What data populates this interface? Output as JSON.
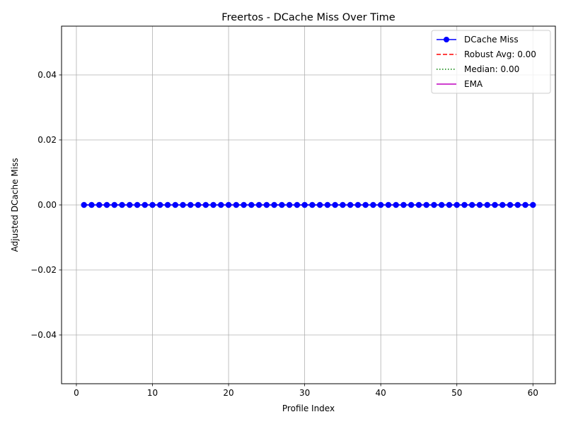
{
  "chart_data": {
    "type": "line",
    "title": "Freertos - DCache Miss Over Time",
    "xlabel": "Profile Index",
    "ylabel": "Adjusted DCache Miss",
    "xlim": [
      -1.95,
      62.95
    ],
    "ylim": [
      -0.055,
      0.055
    ],
    "xticks": [
      0,
      10,
      20,
      30,
      40,
      50,
      60
    ],
    "xtick_labels": [
      "0",
      "10",
      "20",
      "30",
      "40",
      "50",
      "60"
    ],
    "yticks": [
      -0.04,
      -0.02,
      0.0,
      0.02,
      0.04
    ],
    "ytick_labels": [
      "−0.04",
      "−0.02",
      "0.00",
      "0.02",
      "0.04"
    ],
    "grid": true,
    "legend_position": "top-right",
    "series": [
      {
        "name": "DCache Miss",
        "color": "#0000ff",
        "style": "solid-with-circle-markers",
        "x": [
          1,
          2,
          3,
          4,
          5,
          6,
          7,
          8,
          9,
          10,
          11,
          12,
          13,
          14,
          15,
          16,
          17,
          18,
          19,
          20,
          21,
          22,
          23,
          24,
          25,
          26,
          27,
          28,
          29,
          30,
          31,
          32,
          33,
          34,
          35,
          36,
          37,
          38,
          39,
          40,
          41,
          42,
          43,
          44,
          45,
          46,
          47,
          48,
          49,
          50,
          51,
          52,
          53,
          54,
          55,
          56,
          57,
          58,
          59,
          60
        ],
        "y": [
          0,
          0,
          0,
          0,
          0,
          0,
          0,
          0,
          0,
          0,
          0,
          0,
          0,
          0,
          0,
          0,
          0,
          0,
          0,
          0,
          0,
          0,
          0,
          0,
          0,
          0,
          0,
          0,
          0,
          0,
          0,
          0,
          0,
          0,
          0,
          0,
          0,
          0,
          0,
          0,
          0,
          0,
          0,
          0,
          0,
          0,
          0,
          0,
          0,
          0,
          0,
          0,
          0,
          0,
          0,
          0,
          0,
          0,
          0,
          0
        ]
      },
      {
        "name": "Robust Avg: 0.00",
        "color": "#ff0000",
        "style": "dashed",
        "value": 0.0
      },
      {
        "name": "Median: 0.00",
        "color": "#008000",
        "style": "dotted",
        "value": 0.0
      },
      {
        "name": "EMA",
        "color": "#bf00bf",
        "style": "solid",
        "value": 0.0
      }
    ]
  }
}
